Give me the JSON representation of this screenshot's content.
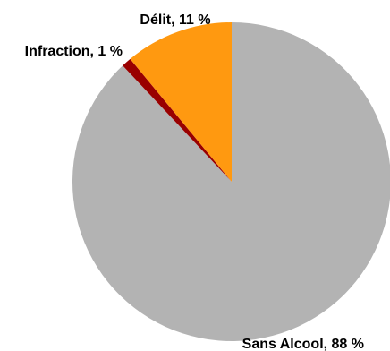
{
  "chart_data": {
    "type": "pie",
    "title": "",
    "slices": [
      {
        "name": "Sans Alcool",
        "value": 88,
        "label": "Sans Alcool, 88 %",
        "color": "#b3b3b3",
        "label_position": "bottom-right"
      },
      {
        "name": "Infraction",
        "value": 1,
        "label": "Infraction, 1 %",
        "color": "#990000",
        "label_position": "top-left"
      },
      {
        "name": "Délit",
        "value": 11,
        "label": "Délit, 11 %",
        "color": "#ff9910",
        "label_position": "top"
      }
    ],
    "start_angle_deg": 0,
    "direction": "clockwise",
    "legend": "none"
  }
}
